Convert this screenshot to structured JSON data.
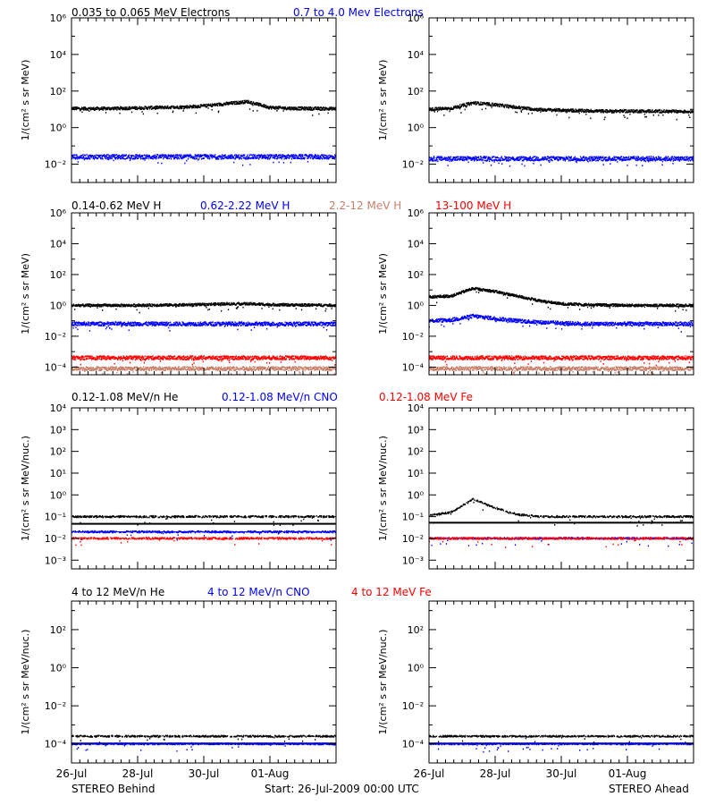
{
  "footer": {
    "left": "STEREO Behind",
    "center": "Start: 26-Jul-2009 00:00 UTC",
    "right": "STEREO Ahead"
  },
  "x_ticks": [
    "26-Jul",
    "28-Jul",
    "30-Jul",
    "01-Aug"
  ],
  "colors": {
    "black": "#000000",
    "blue": "#0000ff",
    "tan": "#c8806a",
    "red": "#ff0000"
  },
  "chart_data": [
    {
      "type": "scatter",
      "row": 0,
      "side": "behind",
      "ylabel": "1/(cm² s sr MeV)",
      "log": true,
      "ylim": [
        -3,
        6
      ],
      "yticks": [
        "10⁻²",
        "10⁰",
        "10²",
        "10⁴",
        "10⁶"
      ],
      "ytick_exp": [
        -2,
        0,
        2,
        4,
        6
      ],
      "xlim_days": [
        0,
        8
      ],
      "series": [
        {
          "name": "0.035 to 0.065 MeV Electrons",
          "color": "black",
          "log_values": [
            1.05,
            1.03,
            1.05,
            1.07,
            1.1,
            1.12,
            1.18,
            1.3,
            1.42,
            1.1,
            1.05,
            1.04,
            1.03
          ]
        },
        {
          "name": "0.7 to 4.0 Mev Electrons",
          "color": "blue",
          "log_values": [
            -1.6,
            -1.6,
            -1.6,
            -1.6,
            -1.6,
            -1.6,
            -1.6,
            -1.6,
            -1.6,
            -1.6,
            -1.6,
            -1.6,
            -1.6
          ]
        }
      ]
    },
    {
      "type": "scatter",
      "row": 0,
      "side": "ahead",
      "ylabel": "1/(cm² s sr MeV)",
      "log": true,
      "ylim": [
        -3,
        6
      ],
      "yticks": [
        "10⁻²",
        "10⁰",
        "10²",
        "10⁴",
        "10⁶"
      ],
      "ytick_exp": [
        -2,
        0,
        2,
        4,
        6
      ],
      "xlim_days": [
        0,
        8
      ],
      "series": [
        {
          "name": "0.035 to 0.065 MeV Electrons",
          "color": "black",
          "log_values": [
            1.0,
            1.05,
            1.35,
            1.25,
            1.1,
            0.98,
            0.95,
            0.92,
            0.9,
            0.9,
            0.9,
            0.88,
            0.88
          ]
        },
        {
          "name": "0.7 to 4.0 Mev Electrons",
          "color": "blue",
          "log_values": [
            -1.7,
            -1.7,
            -1.7,
            -1.7,
            -1.7,
            -1.7,
            -1.7,
            -1.7,
            -1.7,
            -1.7,
            -1.7,
            -1.7,
            -1.7
          ]
        }
      ]
    },
    {
      "type": "scatter",
      "row": 1,
      "side": "behind",
      "ylabel": "1/(cm² s sr MeV)",
      "log": true,
      "ylim": [
        -4.5,
        6
      ],
      "yticks": [
        "10⁻⁴",
        "10⁻²",
        "10⁰",
        "10²",
        "10⁴",
        "10⁶"
      ],
      "ytick_exp": [
        -4,
        -2,
        0,
        2,
        4,
        6
      ],
      "xlim_days": [
        0,
        8
      ],
      "series": [
        {
          "name": "0.14-0.62 MeV H",
          "color": "black",
          "log_values": [
            0.0,
            0.0,
            0.0,
            0.0,
            0.02,
            0.03,
            0.05,
            0.1,
            0.1,
            0.05,
            0.03,
            0.02,
            0.0
          ]
        },
        {
          "name": "0.62-2.22 MeV H",
          "color": "blue",
          "log_values": [
            -1.2,
            -1.2,
            -1.2,
            -1.2,
            -1.2,
            -1.2,
            -1.2,
            -1.2,
            -1.2,
            -1.2,
            -1.2,
            -1.2,
            -1.2
          ]
        },
        {
          "name": "2.2-12 MeV H",
          "color": "tan",
          "log_values": [
            -4.1,
            -4.1,
            -4.1,
            -4.1,
            -4.1,
            -4.1,
            -4.1,
            -4.1,
            -4.1,
            -4.1,
            -4.1,
            -4.1,
            -4.1
          ]
        },
        {
          "name": "13-100 MeV H",
          "color": "red",
          "log_values": [
            -3.4,
            -3.4,
            -3.4,
            -3.4,
            -3.4,
            -3.4,
            -3.4,
            -3.4,
            -3.4,
            -3.4,
            -3.4,
            -3.4,
            -3.4
          ]
        }
      ]
    },
    {
      "type": "scatter",
      "row": 1,
      "side": "ahead",
      "ylabel": "1/(cm² s sr MeV)",
      "log": true,
      "ylim": [
        -4.5,
        6
      ],
      "yticks": [
        "10⁻⁴",
        "10⁻²",
        "10⁰",
        "10²",
        "10⁴",
        "10⁶"
      ],
      "ytick_exp": [
        -4,
        -2,
        0,
        2,
        4,
        6
      ],
      "xlim_days": [
        0,
        8
      ],
      "series": [
        {
          "name": "0.14-0.62 MeV H",
          "color": "black",
          "log_values": [
            0.55,
            0.6,
            1.1,
            0.9,
            0.6,
            0.3,
            0.1,
            0.05,
            0.02,
            0.0,
            0.0,
            0.0,
            0.0
          ]
        },
        {
          "name": "0.62-2.22 MeV H",
          "color": "blue",
          "log_values": [
            -1.0,
            -0.95,
            -0.7,
            -0.85,
            -1.0,
            -1.1,
            -1.15,
            -1.2,
            -1.2,
            -1.2,
            -1.2,
            -1.2,
            -1.2
          ]
        },
        {
          "name": "2.2-12 MeV H",
          "color": "tan",
          "log_values": [
            -4.1,
            -4.1,
            -4.1,
            -4.1,
            -4.1,
            -4.1,
            -4.1,
            -4.1,
            -4.1,
            -4.1,
            -4.1,
            -4.1,
            -4.1
          ]
        },
        {
          "name": "13-100 MeV H",
          "color": "red",
          "log_values": [
            -3.4,
            -3.4,
            -3.4,
            -3.4,
            -3.4,
            -3.4,
            -3.4,
            -3.4,
            -3.4,
            -3.4,
            -3.4,
            -3.4,
            -3.4
          ]
        }
      ]
    },
    {
      "type": "scatter",
      "row": 2,
      "side": "behind",
      "ylabel": "1/(cm² s sr MeV/nuc.)",
      "log": true,
      "ylim": [
        -3.4,
        4
      ],
      "yticks": [
        "10⁻³",
        "10⁻²",
        "10⁻¹",
        "10⁰",
        "10¹",
        "10²",
        "10³",
        "10⁴"
      ],
      "ytick_exp": [
        -3,
        -2,
        -1,
        0,
        1,
        2,
        3,
        4
      ],
      "xlim_days": [
        0,
        8
      ],
      "series": [
        {
          "name": "0.12-1.08 MeV/n He",
          "color": "black",
          "log_values": [
            -1.0,
            -1.0,
            -1.0,
            -1.0,
            -1.0,
            -1.0,
            -1.0,
            -1.0,
            -1.0,
            -1.0,
            -1.0,
            -1.0,
            -1.0
          ]
        },
        {
          "name": "0.12-1.08 MeV/n CNO",
          "color": "blue",
          "log_values": [
            -1.7,
            -1.7,
            -1.7,
            -1.7,
            -1.7,
            -1.7,
            -1.7,
            -1.7,
            -1.7,
            -1.7,
            -1.7,
            -1.7,
            -1.7
          ]
        },
        {
          "name": "0.12-1.08 MeV Fe",
          "color": "red",
          "log_values": [
            -2.0,
            -2.0,
            -2.0,
            -2.0,
            -2.0,
            -2.0,
            -2.0,
            -2.0,
            -2.0,
            -2.0,
            -2.0,
            -2.0,
            -2.0
          ]
        }
      ]
    },
    {
      "type": "scatter",
      "row": 2,
      "side": "ahead",
      "ylabel": "1/(cm² s sr MeV/nuc.)",
      "log": true,
      "ylim": [
        -3.4,
        4
      ],
      "yticks": [
        "10⁻³",
        "10⁻²",
        "10⁻¹",
        "10⁰",
        "10¹",
        "10²",
        "10³",
        "10⁴"
      ],
      "ytick_exp": [
        -3,
        -2,
        -1,
        0,
        1,
        2,
        3,
        4
      ],
      "xlim_days": [
        0,
        8
      ],
      "series": [
        {
          "name": "0.12-1.08 MeV/n He",
          "color": "black",
          "log_values": [
            -0.95,
            -0.8,
            -0.2,
            -0.6,
            -0.9,
            -1.0,
            -1.0,
            -1.0,
            -1.0,
            -1.0,
            -1.0,
            -1.0,
            -1.0
          ]
        },
        {
          "name": "0.12-1.08 MeV/n CNO",
          "color": "blue",
          "log_values": [
            -2.0,
            -2.0,
            -2.0,
            -2.0,
            -2.0,
            -2.0,
            -2.0,
            -2.0,
            -2.0,
            -2.0,
            -2.0,
            -2.0,
            -2.0
          ]
        },
        {
          "name": "0.12-1.08 MeV Fe",
          "color": "red",
          "log_values": [
            -2.0,
            -2.0,
            -2.0,
            -2.0,
            -2.0,
            -2.0,
            -2.0,
            -2.0,
            -2.0,
            -2.0,
            -2.0,
            -2.0,
            -2.0
          ]
        }
      ]
    },
    {
      "type": "scatter",
      "row": 3,
      "side": "behind",
      "ylabel": "1/(cm² s sr MeV/nuc.)",
      "log": true,
      "ylim": [
        -5,
        3.5
      ],
      "yticks": [
        "10⁻⁴",
        "10⁻²",
        "10⁰",
        "10²"
      ],
      "ytick_exp": [
        -4,
        -2,
        0,
        2
      ],
      "xlim_days": [
        0,
        8
      ],
      "series": [
        {
          "name": "4 to 12 MeV/n He",
          "color": "black",
          "log_values": [
            -3.6,
            -3.6,
            -3.6,
            -3.6,
            -3.6,
            -3.6,
            -3.6,
            -3.6,
            -3.6,
            -3.6,
            -3.6,
            -3.6,
            -3.6
          ]
        },
        {
          "name": "4 to 12 MeV/n CNO",
          "color": "blue",
          "log_values": [
            -4.0,
            -4.0,
            -4.0,
            -4.0,
            -4.0,
            -4.0,
            -4.0,
            -4.0,
            -4.0,
            -4.0,
            -4.0,
            -4.0,
            -4.0
          ]
        },
        {
          "name": "4 to 12 MeV Fe",
          "color": "red",
          "log_values": []
        }
      ]
    },
    {
      "type": "scatter",
      "row": 3,
      "side": "ahead",
      "ylabel": "1/(cm² s sr MeV/nuc.)",
      "log": true,
      "ylim": [
        -5,
        3.5
      ],
      "yticks": [
        "10⁻⁴",
        "10⁻²",
        "10⁰",
        "10²"
      ],
      "ytick_exp": [
        -4,
        -2,
        0,
        2
      ],
      "xlim_days": [
        0,
        8
      ],
      "series": [
        {
          "name": "4 to 12 MeV/n He",
          "color": "black",
          "log_values": [
            -3.6,
            -3.6,
            -3.6,
            -3.6,
            -3.6,
            -3.6,
            -3.6,
            -3.6,
            -3.6,
            -3.6,
            -3.6,
            -3.6,
            -3.6
          ]
        },
        {
          "name": "4 to 12 MeV/n CNO",
          "color": "blue",
          "log_values": [
            -4.0,
            -4.0,
            -4.0,
            -4.0,
            -4.0,
            -4.0,
            -4.0,
            -4.0,
            -4.0,
            -4.0,
            -4.0,
            -4.0,
            -4.0
          ]
        },
        {
          "name": "4 to 12 MeV Fe",
          "color": "red",
          "log_values": []
        }
      ]
    }
  ]
}
